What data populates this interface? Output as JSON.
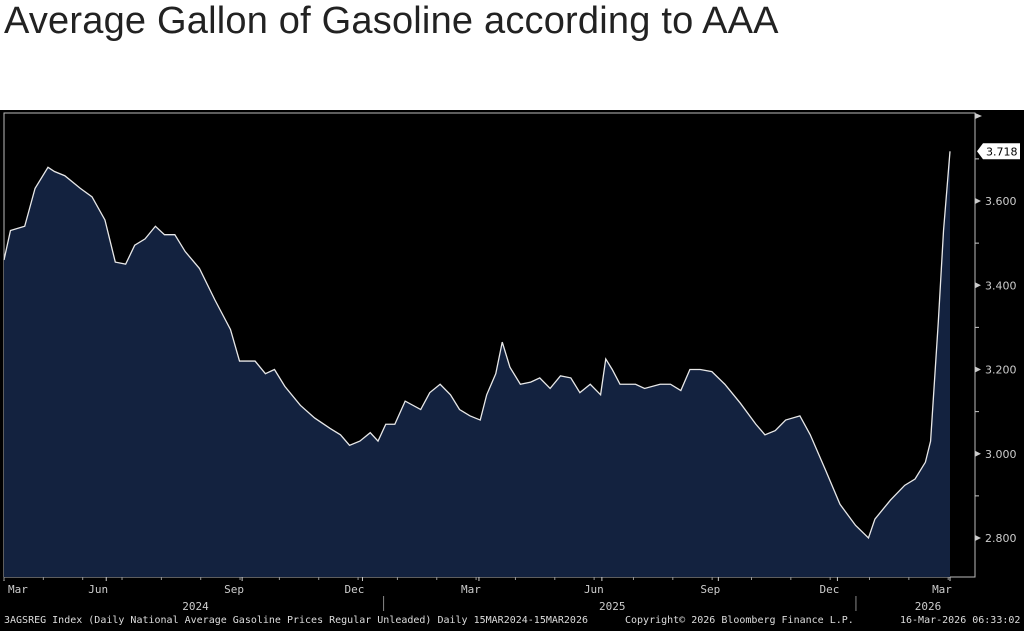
{
  "title": "Average Gallon of Gasoline according to AAA",
  "chart_data": {
    "type": "area",
    "x_unit": "days since 15-Mar-2024",
    "x": [
      0,
      5,
      16,
      24,
      34,
      39,
      47,
      59,
      68,
      78,
      86,
      94,
      101,
      109,
      117,
      124,
      132,
      140,
      151,
      163,
      175,
      182,
      194,
      202,
      209,
      217,
      229,
      240,
      252,
      260,
      267,
      275,
      283,
      289,
      295,
      302,
      310,
      322,
      329,
      337,
      345,
      352,
      360,
      368,
      373,
      380,
      385,
      391,
      399,
      407,
      414,
      422,
      430,
      438,
      445,
      453,
      461,
      465,
      470,
      476,
      488,
      495,
      507,
      515,
      523,
      530,
      538,
      547,
      557,
      569,
      581,
      588,
      596,
      604,
      615,
      623,
      635,
      646,
      658,
      668,
      673,
      685,
      696,
      704,
      712,
      716,
      722,
      726,
      731
    ],
    "values": [
      3.46,
      3.53,
      3.54,
      3.63,
      3.68,
      3.67,
      3.66,
      3.63,
      3.61,
      3.555,
      3.455,
      3.45,
      3.495,
      3.51,
      3.54,
      3.52,
      3.52,
      3.48,
      3.44,
      3.365,
      3.295,
      3.22,
      3.22,
      3.19,
      3.2,
      3.16,
      3.115,
      3.085,
      3.06,
      3.045,
      3.02,
      3.03,
      3.05,
      3.03,
      3.07,
      3.07,
      3.125,
      3.105,
      3.145,
      3.165,
      3.14,
      3.105,
      3.09,
      3.08,
      3.14,
      3.19,
      3.265,
      3.205,
      3.165,
      3.17,
      3.18,
      3.155,
      3.185,
      3.18,
      3.145,
      3.165,
      3.14,
      3.225,
      3.2,
      3.165,
      3.165,
      3.155,
      3.165,
      3.165,
      3.15,
      3.2,
      3.2,
      3.195,
      3.165,
      3.12,
      3.07,
      3.045,
      3.055,
      3.08,
      3.09,
      3.045,
      2.96,
      2.88,
      2.83,
      2.8,
      2.845,
      2.89,
      2.925,
      2.94,
      2.98,
      3.03,
      3.315,
      3.53,
      3.718
    ],
    "last_value_label": "3.718",
    "ylim": [
      2.7,
      3.85
    ],
    "y_ticks": [
      "2.800",
      "3.000",
      "3.200",
      "3.400",
      "3.600"
    ],
    "x_ticks": [
      {
        "label": "Mar",
        "day": 0
      },
      {
        "label": "Jun",
        "day": 79
      },
      {
        "label": "Sep",
        "day": 184
      },
      {
        "label": "Dec",
        "day": 277
      },
      {
        "label": "Mar",
        "day": 367
      },
      {
        "label": "Jun",
        "day": 462
      },
      {
        "label": "Sep",
        "day": 552
      },
      {
        "label": "Dec",
        "day": 644
      },
      {
        "label": "Mar",
        "day": 731
      }
    ],
    "years": [
      {
        "label": "2024",
        "day": 148
      },
      {
        "label": "2025",
        "day": 470
      },
      {
        "label": "2026",
        "day": 714
      }
    ],
    "year_separators": [
      291,
      656
    ],
    "fill_color": "#13223f",
    "line_color": "#e8e8e8"
  },
  "footer": {
    "source": "3AGSREG Index (Daily National Average Gasoline Prices Regular Unleaded) Daily 15MAR2024-15MAR2026",
    "copyright": "Copyright© 2026 Bloomberg Finance L.P.",
    "timestamp": "16-Mar-2026 06:33:02"
  }
}
